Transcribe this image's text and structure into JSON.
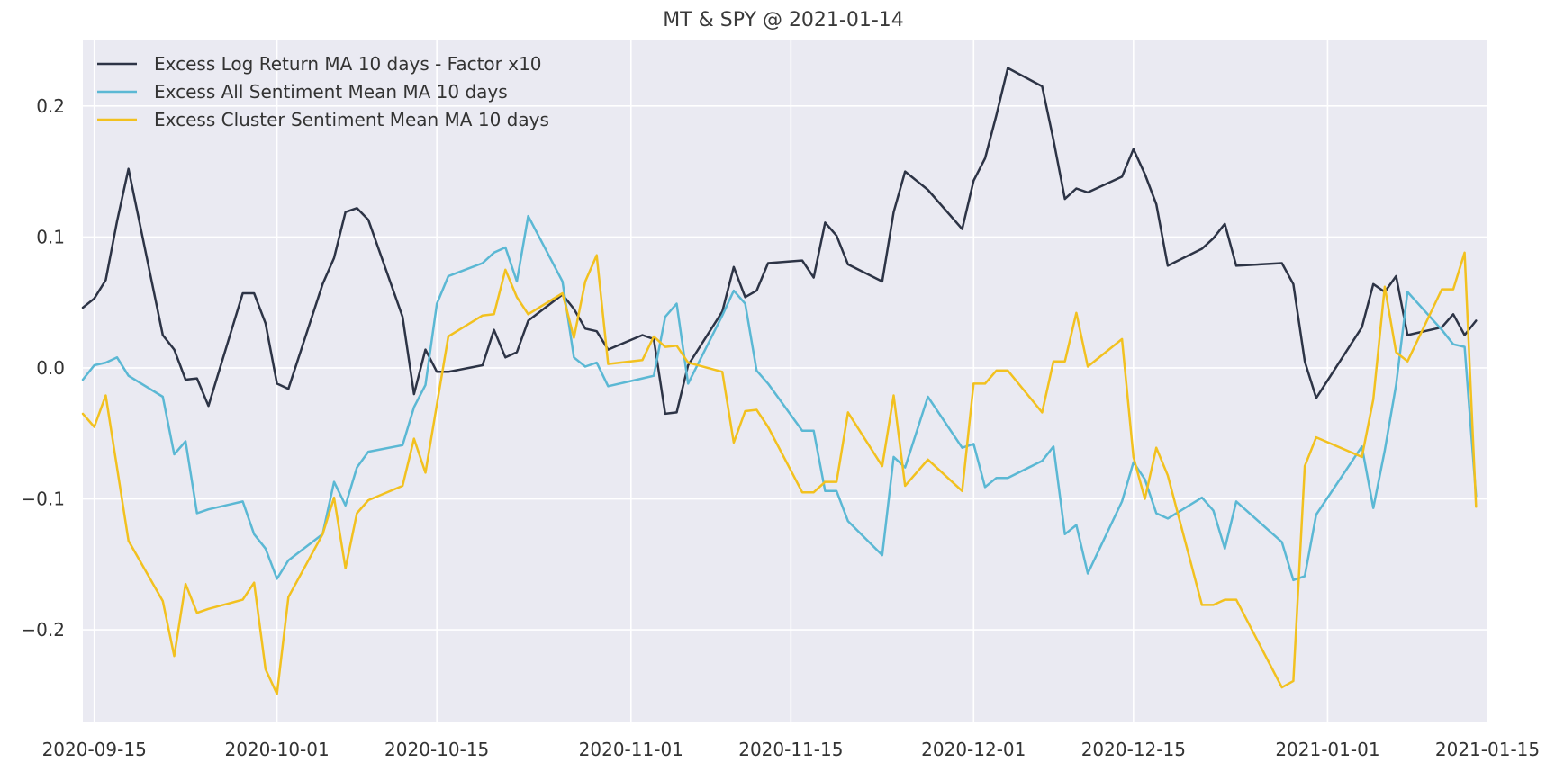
{
  "chart_data": {
    "type": "line",
    "title": "MT & SPY @ 2021-01-14",
    "xlabel": "",
    "ylabel": "",
    "x_type": "date",
    "xlim": [
      "2020-09-14",
      "2021-01-15"
    ],
    "ylim": [
      -0.27,
      0.25
    ],
    "xticks": [
      "2020-09-15",
      "2020-10-01",
      "2020-10-15",
      "2020-11-01",
      "2020-11-15",
      "2020-12-01",
      "2020-12-15",
      "2021-01-01",
      "2021-01-15"
    ],
    "yticks": [
      0.2,
      0.1,
      0.0,
      -0.1,
      -0.2
    ],
    "ytick_labels": [
      "0.2",
      "0.1",
      "0.0",
      "−0.1",
      "−0.2"
    ],
    "grid": true,
    "legend_position": "top-left",
    "series": [
      {
        "name": "Excess Log Return MA 10 days - Factor x10",
        "color": "#2d3446",
        "points": [
          [
            "2020-09-14",
            0.046
          ],
          [
            "2020-09-15",
            0.053
          ],
          [
            "2020-09-16",
            0.067
          ],
          [
            "2020-09-17",
            0.112
          ],
          [
            "2020-09-18",
            0.152
          ],
          [
            "2020-09-21",
            0.025
          ],
          [
            "2020-09-22",
            0.014
          ],
          [
            "2020-09-23",
            -0.009
          ],
          [
            "2020-09-24",
            -0.008
          ],
          [
            "2020-09-25",
            -0.029
          ],
          [
            "2020-09-28",
            0.057
          ],
          [
            "2020-09-29",
            0.057
          ],
          [
            "2020-09-30",
            0.034
          ],
          [
            "2020-10-01",
            -0.012
          ],
          [
            "2020-10-02",
            -0.016
          ],
          [
            "2020-10-05",
            0.064
          ],
          [
            "2020-10-06",
            0.084
          ],
          [
            "2020-10-07",
            0.119
          ],
          [
            "2020-10-08",
            0.122
          ],
          [
            "2020-10-09",
            0.113
          ],
          [
            "2020-10-12",
            0.039
          ],
          [
            "2020-10-13",
            -0.02
          ],
          [
            "2020-10-14",
            0.014
          ],
          [
            "2020-10-15",
            -0.003
          ],
          [
            "2020-10-16",
            -0.003
          ],
          [
            "2020-10-19",
            0.002
          ],
          [
            "2020-10-20",
            0.029
          ],
          [
            "2020-10-21",
            0.008
          ],
          [
            "2020-10-22",
            0.012
          ],
          [
            "2020-10-23",
            0.036
          ],
          [
            "2020-10-26",
            0.056
          ],
          [
            "2020-10-27",
            0.045
          ],
          [
            "2020-10-28",
            0.03
          ],
          [
            "2020-10-29",
            0.028
          ],
          [
            "2020-10-30",
            0.014
          ],
          [
            "2020-11-02",
            0.025
          ],
          [
            "2020-11-03",
            0.022
          ],
          [
            "2020-11-04",
            -0.035
          ],
          [
            "2020-11-05",
            -0.034
          ],
          [
            "2020-11-06",
            0.002
          ],
          [
            "2020-11-09",
            0.043
          ],
          [
            "2020-11-10",
            0.077
          ],
          [
            "2020-11-11",
            0.054
          ],
          [
            "2020-11-12",
            0.059
          ],
          [
            "2020-11-13",
            0.08
          ],
          [
            "2020-11-16",
            0.082
          ],
          [
            "2020-11-17",
            0.069
          ],
          [
            "2020-11-18",
            0.111
          ],
          [
            "2020-11-19",
            0.101
          ],
          [
            "2020-11-20",
            0.079
          ],
          [
            "2020-11-23",
            0.066
          ],
          [
            "2020-11-24",
            0.119
          ],
          [
            "2020-11-25",
            0.15
          ],
          [
            "2020-11-27",
            0.136
          ],
          [
            "2020-11-30",
            0.106
          ],
          [
            "2020-12-01",
            0.143
          ],
          [
            "2020-12-02",
            0.16
          ],
          [
            "2020-12-03",
            0.193
          ],
          [
            "2020-12-04",
            0.229
          ],
          [
            "2020-12-07",
            0.215
          ],
          [
            "2020-12-08",
            0.174
          ],
          [
            "2020-12-09",
            0.129
          ],
          [
            "2020-12-10",
            0.137
          ],
          [
            "2020-12-11",
            0.134
          ],
          [
            "2020-12-14",
            0.146
          ],
          [
            "2020-12-15",
            0.167
          ],
          [
            "2020-12-16",
            0.148
          ],
          [
            "2020-12-17",
            0.125
          ],
          [
            "2020-12-18",
            0.078
          ],
          [
            "2020-12-21",
            0.091
          ],
          [
            "2020-12-22",
            0.099
          ],
          [
            "2020-12-23",
            0.11
          ],
          [
            "2020-12-24",
            0.078
          ],
          [
            "2020-12-28",
            0.08
          ],
          [
            "2020-12-29",
            0.064
          ],
          [
            "2020-12-30",
            0.005
          ],
          [
            "2020-12-31",
            -0.023
          ],
          [
            "2021-01-04",
            0.031
          ],
          [
            "2021-01-05",
            0.064
          ],
          [
            "2021-01-06",
            0.058
          ],
          [
            "2021-01-07",
            0.07
          ],
          [
            "2021-01-08",
            0.025
          ],
          [
            "2021-01-11",
            0.031
          ],
          [
            "2021-01-12",
            0.041
          ],
          [
            "2021-01-13",
            0.025
          ],
          [
            "2021-01-14",
            0.036
          ]
        ]
      },
      {
        "name": "Excess All Sentiment Mean MA 10 days",
        "color": "#5bb8d4",
        "points": [
          [
            "2020-09-14",
            -0.009
          ],
          [
            "2020-09-15",
            0.002
          ],
          [
            "2020-09-16",
            0.004
          ],
          [
            "2020-09-17",
            0.008
          ],
          [
            "2020-09-18",
            -0.006
          ],
          [
            "2020-09-21",
            -0.022
          ],
          [
            "2020-09-22",
            -0.066
          ],
          [
            "2020-09-23",
            -0.056
          ],
          [
            "2020-09-24",
            -0.111
          ],
          [
            "2020-09-25",
            -0.108
          ],
          [
            "2020-09-28",
            -0.102
          ],
          [
            "2020-09-29",
            -0.127
          ],
          [
            "2020-09-30",
            -0.138
          ],
          [
            "2020-10-01",
            -0.161
          ],
          [
            "2020-10-02",
            -0.147
          ],
          [
            "2020-10-05",
            -0.127
          ],
          [
            "2020-10-06",
            -0.087
          ],
          [
            "2020-10-07",
            -0.105
          ],
          [
            "2020-10-08",
            -0.076
          ],
          [
            "2020-10-09",
            -0.064
          ],
          [
            "2020-10-12",
            -0.059
          ],
          [
            "2020-10-13",
            -0.03
          ],
          [
            "2020-10-14",
            -0.013
          ],
          [
            "2020-10-15",
            0.049
          ],
          [
            "2020-10-16",
            0.07
          ],
          [
            "2020-10-19",
            0.08
          ],
          [
            "2020-10-20",
            0.088
          ],
          [
            "2020-10-21",
            0.092
          ],
          [
            "2020-10-22",
            0.066
          ],
          [
            "2020-10-23",
            0.116
          ],
          [
            "2020-10-26",
            0.066
          ],
          [
            "2020-10-27",
            0.008
          ],
          [
            "2020-10-28",
            0.001
          ],
          [
            "2020-10-29",
            0.004
          ],
          [
            "2020-10-30",
            -0.014
          ],
          [
            "2020-11-02",
            -0.008
          ],
          [
            "2020-11-03",
            -0.006
          ],
          [
            "2020-11-04",
            0.039
          ],
          [
            "2020-11-05",
            0.049
          ],
          [
            "2020-11-06",
            -0.012
          ],
          [
            "2020-11-09",
            0.04
          ],
          [
            "2020-11-10",
            0.059
          ],
          [
            "2020-11-11",
            0.049
          ],
          [
            "2020-11-12",
            -0.002
          ],
          [
            "2020-11-13",
            -0.012
          ],
          [
            "2020-11-16",
            -0.048
          ],
          [
            "2020-11-17",
            -0.048
          ],
          [
            "2020-11-18",
            -0.094
          ],
          [
            "2020-11-19",
            -0.094
          ],
          [
            "2020-11-20",
            -0.117
          ],
          [
            "2020-11-23",
            -0.143
          ],
          [
            "2020-11-24",
            -0.068
          ],
          [
            "2020-11-25",
            -0.076
          ],
          [
            "2020-11-27",
            -0.022
          ],
          [
            "2020-11-30",
            -0.061
          ],
          [
            "2020-12-01",
            -0.058
          ],
          [
            "2020-12-02",
            -0.091
          ],
          [
            "2020-12-03",
            -0.084
          ],
          [
            "2020-12-04",
            -0.084
          ],
          [
            "2020-12-07",
            -0.071
          ],
          [
            "2020-12-08",
            -0.06
          ],
          [
            "2020-12-09",
            -0.127
          ],
          [
            "2020-12-10",
            -0.12
          ],
          [
            "2020-12-11",
            -0.157
          ],
          [
            "2020-12-14",
            -0.102
          ],
          [
            "2020-12-15",
            -0.072
          ],
          [
            "2020-12-16",
            -0.085
          ],
          [
            "2020-12-17",
            -0.111
          ],
          [
            "2020-12-18",
            -0.115
          ],
          [
            "2020-12-21",
            -0.099
          ],
          [
            "2020-12-22",
            -0.109
          ],
          [
            "2020-12-23",
            -0.138
          ],
          [
            "2020-12-24",
            -0.102
          ],
          [
            "2020-12-28",
            -0.133
          ],
          [
            "2020-12-29",
            -0.162
          ],
          [
            "2020-12-30",
            -0.159
          ],
          [
            "2020-12-31",
            -0.112
          ],
          [
            "2021-01-04",
            -0.06
          ],
          [
            "2021-01-05",
            -0.107
          ],
          [
            "2021-01-06",
            -0.063
          ],
          [
            "2021-01-07",
            -0.013
          ],
          [
            "2021-01-08",
            0.058
          ],
          [
            "2021-01-11",
            0.029
          ],
          [
            "2021-01-12",
            0.018
          ],
          [
            "2021-01-13",
            0.016
          ],
          [
            "2021-01-14",
            -0.098
          ]
        ]
      },
      {
        "name": "Excess Cluster Sentiment Mean MA 10 days",
        "color": "#f2c11f",
        "points": [
          [
            "2020-09-14",
            -0.035
          ],
          [
            "2020-09-15",
            -0.045
          ],
          [
            "2020-09-16",
            -0.021
          ],
          [
            "2020-09-18",
            -0.132
          ],
          [
            "2020-09-21",
            -0.178
          ],
          [
            "2020-09-22",
            -0.22
          ],
          [
            "2020-09-23",
            -0.165
          ],
          [
            "2020-09-24",
            -0.187
          ],
          [
            "2020-09-25",
            -0.184
          ],
          [
            "2020-09-28",
            -0.177
          ],
          [
            "2020-09-29",
            -0.164
          ],
          [
            "2020-09-30",
            -0.23
          ],
          [
            "2020-10-01",
            -0.249
          ],
          [
            "2020-10-02",
            -0.175
          ],
          [
            "2020-10-05",
            -0.127
          ],
          [
            "2020-10-06",
            -0.099
          ],
          [
            "2020-10-07",
            -0.153
          ],
          [
            "2020-10-08",
            -0.111
          ],
          [
            "2020-10-09",
            -0.101
          ],
          [
            "2020-10-12",
            -0.09
          ],
          [
            "2020-10-13",
            -0.054
          ],
          [
            "2020-10-14",
            -0.08
          ],
          [
            "2020-10-15",
            -0.028
          ],
          [
            "2020-10-16",
            0.024
          ],
          [
            "2020-10-19",
            0.04
          ],
          [
            "2020-10-20",
            0.041
          ],
          [
            "2020-10-21",
            0.075
          ],
          [
            "2020-10-22",
            0.054
          ],
          [
            "2020-10-23",
            0.041
          ],
          [
            "2020-10-26",
            0.057
          ],
          [
            "2020-10-27",
            0.023
          ],
          [
            "2020-10-28",
            0.066
          ],
          [
            "2020-10-29",
            0.086
          ],
          [
            "2020-10-30",
            0.003
          ],
          [
            "2020-11-02",
            0.006
          ],
          [
            "2020-11-03",
            0.024
          ],
          [
            "2020-11-04",
            0.016
          ],
          [
            "2020-11-05",
            0.017
          ],
          [
            "2020-11-06",
            0.004
          ],
          [
            "2020-11-09",
            -0.003
          ],
          [
            "2020-11-10",
            -0.057
          ],
          [
            "2020-11-11",
            -0.033
          ],
          [
            "2020-11-12",
            -0.032
          ],
          [
            "2020-11-13",
            -0.045
          ],
          [
            "2020-11-16",
            -0.095
          ],
          [
            "2020-11-17",
            -0.095
          ],
          [
            "2020-11-18",
            -0.087
          ],
          [
            "2020-11-19",
            -0.087
          ],
          [
            "2020-11-20",
            -0.034
          ],
          [
            "2020-11-23",
            -0.075
          ],
          [
            "2020-11-24",
            -0.021
          ],
          [
            "2020-11-25",
            -0.09
          ],
          [
            "2020-11-27",
            -0.07
          ],
          [
            "2020-11-30",
            -0.094
          ],
          [
            "2020-12-01",
            -0.012
          ],
          [
            "2020-12-02",
            -0.012
          ],
          [
            "2020-12-03",
            -0.002
          ],
          [
            "2020-12-04",
            -0.002
          ],
          [
            "2020-12-07",
            -0.034
          ],
          [
            "2020-12-08",
            0.005
          ],
          [
            "2020-12-09",
            0.005
          ],
          [
            "2020-12-10",
            0.042
          ],
          [
            "2020-12-11",
            0.001
          ],
          [
            "2020-12-14",
            0.022
          ],
          [
            "2020-12-15",
            -0.068
          ],
          [
            "2020-12-16",
            -0.1
          ],
          [
            "2020-12-17",
            -0.061
          ],
          [
            "2020-12-18",
            -0.082
          ],
          [
            "2020-12-21",
            -0.181
          ],
          [
            "2020-12-22",
            -0.181
          ],
          [
            "2020-12-23",
            -0.177
          ],
          [
            "2020-12-24",
            -0.177
          ],
          [
            "2020-12-28",
            -0.244
          ],
          [
            "2020-12-29",
            -0.239
          ],
          [
            "2020-12-30",
            -0.075
          ],
          [
            "2020-12-31",
            -0.053
          ],
          [
            "2021-01-04",
            -0.068
          ],
          [
            "2021-01-05",
            -0.024
          ],
          [
            "2021-01-06",
            0.062
          ],
          [
            "2021-01-07",
            0.012
          ],
          [
            "2021-01-08",
            0.005
          ],
          [
            "2021-01-11",
            0.06
          ],
          [
            "2021-01-12",
            0.06
          ],
          [
            "2021-01-13",
            0.088
          ],
          [
            "2021-01-14",
            -0.106
          ]
        ]
      }
    ]
  }
}
